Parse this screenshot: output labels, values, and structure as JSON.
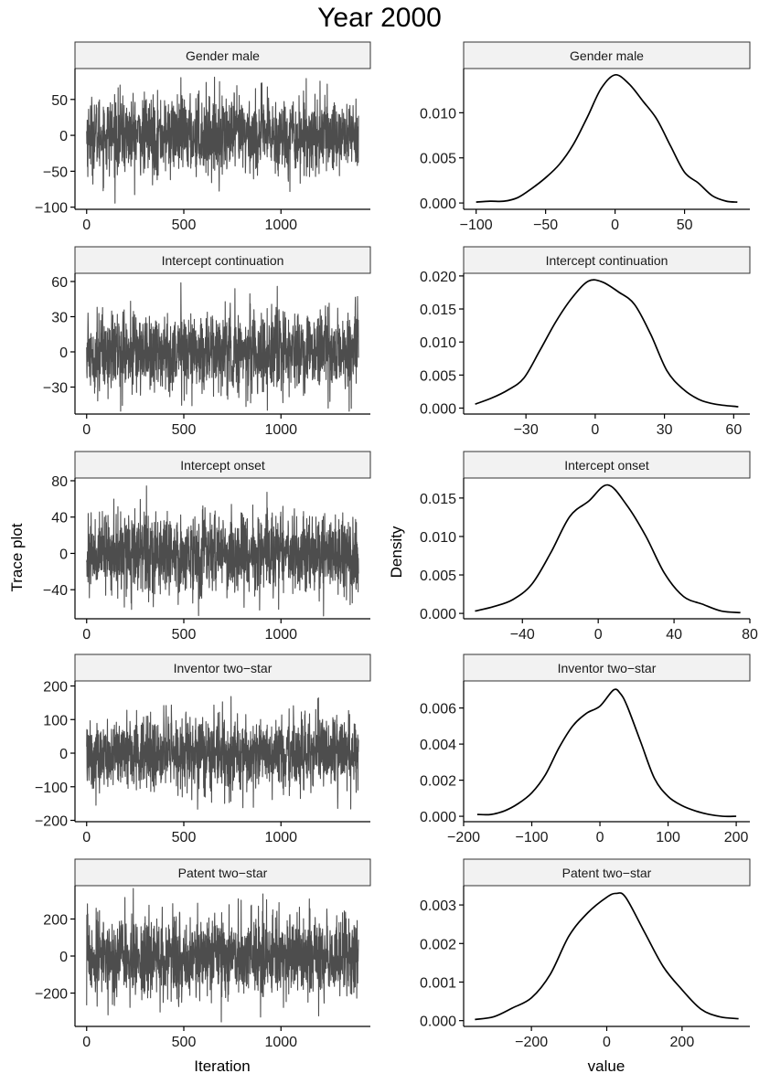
{
  "title": "Year  2000",
  "trace_ylabel": "Trace plot",
  "density_ylabel": "Density",
  "trace_xlabel": "Iteration",
  "density_xlabel": "value",
  "colors": {
    "trace_line": "#4d4d4d",
    "density_line": "#000000",
    "strip_fill": "#f2f2f2",
    "axis": "#000000"
  },
  "chart_data": [
    {
      "type": "line",
      "facet": "Gender male",
      "panel": "trace",
      "n_iter": 1400,
      "mean": 0,
      "sd": 27,
      "xlim": [
        -60,
        1460
      ],
      "ylim": [
        -103,
        93
      ],
      "xticks": [
        0,
        500,
        1000
      ],
      "xtick_labels": [
        "0",
        "500",
        "1000"
      ],
      "yticks": [
        -100,
        -50,
        0,
        50
      ],
      "ytick_labels": [
        "−100",
        "−50",
        "0",
        "50"
      ],
      "xlabel": "",
      "ylabel": "Trace plot"
    },
    {
      "type": "line",
      "facet": "Gender male",
      "panel": "density",
      "x": [
        -100,
        -90,
        -80,
        -70,
        -60,
        -50,
        -40,
        -30,
        -20,
        -10,
        0,
        10,
        20,
        30,
        40,
        50,
        60,
        70,
        80,
        88
      ],
      "y": [
        0.0001,
        0.0002,
        0.0002,
        0.0006,
        0.0016,
        0.0028,
        0.0043,
        0.0065,
        0.0095,
        0.0127,
        0.0142,
        0.0132,
        0.0113,
        0.0093,
        0.0063,
        0.0034,
        0.0022,
        0.0008,
        0.0002,
        0.0001
      ],
      "xlim": [
        -109,
        97
      ],
      "ylim": [
        -0.0007,
        0.0149
      ],
      "xticks": [
        -100,
        -50,
        0,
        50
      ],
      "xtick_labels": [
        "−100",
        "−50",
        "0",
        "50"
      ],
      "yticks": [
        0,
        0.005,
        0.01
      ],
      "ytick_labels": [
        "0.000",
        "0.005",
        "0.010"
      ],
      "xlabel": "value",
      "ylabel": "Density"
    },
    {
      "type": "line",
      "facet": "Intercept continuation",
      "panel": "trace",
      "n_iter": 1400,
      "mean": 0,
      "sd": 17,
      "xlim": [
        -60,
        1460
      ],
      "ylim": [
        -53,
        67
      ],
      "xticks": [
        0,
        500,
        1000
      ],
      "xtick_labels": [
        "0",
        "500",
        "1000"
      ],
      "yticks": [
        -30,
        0,
        30,
        60
      ],
      "ytick_labels": [
        "−30",
        "0",
        "30",
        "60"
      ],
      "xlabel": "",
      "ylabel": "Trace plot"
    },
    {
      "type": "line",
      "facet": "Intercept continuation",
      "panel": "density",
      "x": [
        -52,
        -45,
        -38,
        -31,
        -24,
        -17,
        -10,
        -3,
        3,
        10,
        17,
        24,
        31,
        38,
        45,
        52,
        62
      ],
      "y": [
        0.0006,
        0.0015,
        0.0027,
        0.0045,
        0.0087,
        0.0131,
        0.0167,
        0.0192,
        0.0191,
        0.0176,
        0.0157,
        0.0112,
        0.0057,
        0.0029,
        0.0013,
        0.0006,
        0.0002
      ],
      "xlim": [
        -57,
        67
      ],
      "ylim": [
        -0.0009,
        0.0204
      ],
      "xticks": [
        -30,
        0,
        30,
        60
      ],
      "xtick_labels": [
        "−30",
        "0",
        "30",
        "60"
      ],
      "yticks": [
        0,
        0.005,
        0.01,
        0.015,
        0.02
      ],
      "ytick_labels": [
        "0.000",
        "0.005",
        "0.010",
        "0.015",
        "0.020"
      ],
      "xlabel": "value",
      "ylabel": "Density"
    },
    {
      "type": "line",
      "facet": "Intercept onset",
      "panel": "trace",
      "n_iter": 1400,
      "mean": 0,
      "sd": 22,
      "xlim": [
        -60,
        1460
      ],
      "ylim": [
        -72,
        83
      ],
      "xticks": [
        0,
        500,
        1000
      ],
      "xtick_labels": [
        "0",
        "500",
        "1000"
      ],
      "yticks": [
        -40,
        0,
        40,
        80
      ],
      "ytick_labels": [
        "−40",
        "0",
        "40",
        "80"
      ],
      "xlabel": "",
      "ylabel": "Trace plot"
    },
    {
      "type": "line",
      "facet": "Intercept onset",
      "panel": "density",
      "x": [
        -65,
        -55,
        -45,
        -35,
        -25,
        -15,
        -5,
        5,
        15,
        25,
        35,
        45,
        55,
        65,
        75
      ],
      "y": [
        0.0003,
        0.0009,
        0.0018,
        0.0038,
        0.0079,
        0.0126,
        0.0146,
        0.0167,
        0.0141,
        0.0101,
        0.0052,
        0.0022,
        0.0012,
        0.0003,
        0.0001
      ],
      "xlim": [
        -71,
        80
      ],
      "ylim": [
        -0.0007,
        0.0176
      ],
      "xticks": [
        -40,
        0,
        40,
        80
      ],
      "xtick_labels": [
        "−40",
        "0",
        "40",
        "80"
      ],
      "yticks": [
        0,
        0.005,
        0.01,
        0.015
      ],
      "ytick_labels": [
        "0.000",
        "0.005",
        "0.010",
        "0.015"
      ],
      "xlabel": "value",
      "ylabel": "Density"
    },
    {
      "type": "line",
      "facet": "Inventor two−star",
      "panel": "trace",
      "n_iter": 1400,
      "mean": 0,
      "sd": 55,
      "xlim": [
        -60,
        1460
      ],
      "ylim": [
        -204,
        215
      ],
      "xticks": [
        0,
        500,
        1000
      ],
      "xtick_labels": [
        "0",
        "500",
        "1000"
      ],
      "yticks": [
        -200,
        -100,
        0,
        100,
        200
      ],
      "ytick_labels": [
        "−200",
        "−100",
        "0",
        "100",
        "200"
      ],
      "xlabel": "",
      "ylabel": "Trace plot"
    },
    {
      "type": "line",
      "facet": "Inventor two−star",
      "panel": "density",
      "x": [
        -180,
        -160,
        -140,
        -120,
        -100,
        -80,
        -60,
        -40,
        -20,
        0,
        20,
        30,
        40,
        60,
        80,
        100,
        120,
        140,
        160,
        180,
        200
      ],
      "y": [
        0.0001,
        0.0001,
        0.0003,
        0.0007,
        0.0013,
        0.0023,
        0.0038,
        0.005,
        0.0057,
        0.0061,
        0.007,
        0.0068,
        0.0061,
        0.0041,
        0.0021,
        0.0011,
        0.0006,
        0.0003,
        0.0001,
        0.0,
        0.0
      ],
      "xlim": [
        -200,
        220
      ],
      "ylim": [
        -0.0003,
        0.0075
      ],
      "xticks": [
        -200,
        -100,
        0,
        100,
        200
      ],
      "xtick_labels": [
        "−200",
        "−100",
        "0",
        "100",
        "200"
      ],
      "yticks": [
        0,
        0.002,
        0.004,
        0.006
      ],
      "ytick_labels": [
        "0.000",
        "0.002",
        "0.004",
        "0.006"
      ],
      "xlabel": "value",
      "ylabel": "Density"
    },
    {
      "type": "line",
      "facet": "Patent two−star",
      "panel": "trace",
      "n_iter": 1400,
      "mean": 0,
      "sd": 110,
      "xlim": [
        -60,
        1460
      ],
      "ylim": [
        -380,
        380
      ],
      "xticks": [
        0,
        500,
        1000
      ],
      "xtick_labels": [
        "0",
        "500",
        "1000"
      ],
      "yticks": [
        -200,
        0,
        200
      ],
      "ytick_labels": [
        "−200",
        "0",
        "200"
      ],
      "xlabel": "Iteration",
      "ylabel": "Trace plot"
    },
    {
      "type": "line",
      "facet": "Patent two−star",
      "panel": "density",
      "x": [
        -350,
        -300,
        -250,
        -200,
        -150,
        -100,
        -50,
        0,
        25,
        50,
        100,
        150,
        200,
        250,
        300,
        350
      ],
      "y": [
        3e-05,
        0.0001,
        0.00033,
        0.00059,
        0.0012,
        0.0022,
        0.0028,
        0.0032,
        0.0033,
        0.0032,
        0.0023,
        0.0014,
        0.0008,
        0.0003,
        0.0001,
        5e-05
      ],
      "xlim": [
        -380,
        380
      ],
      "ylim": [
        -0.00015,
        0.0035
      ],
      "xticks": [
        -200,
        0,
        200
      ],
      "xtick_labels": [
        "−200",
        "0",
        "200"
      ],
      "yticks": [
        0,
        0.001,
        0.002,
        0.003
      ],
      "ytick_labels": [
        "0.000",
        "0.001",
        "0.002",
        "0.003"
      ],
      "xlabel": "value",
      "ylabel": "Density"
    }
  ]
}
